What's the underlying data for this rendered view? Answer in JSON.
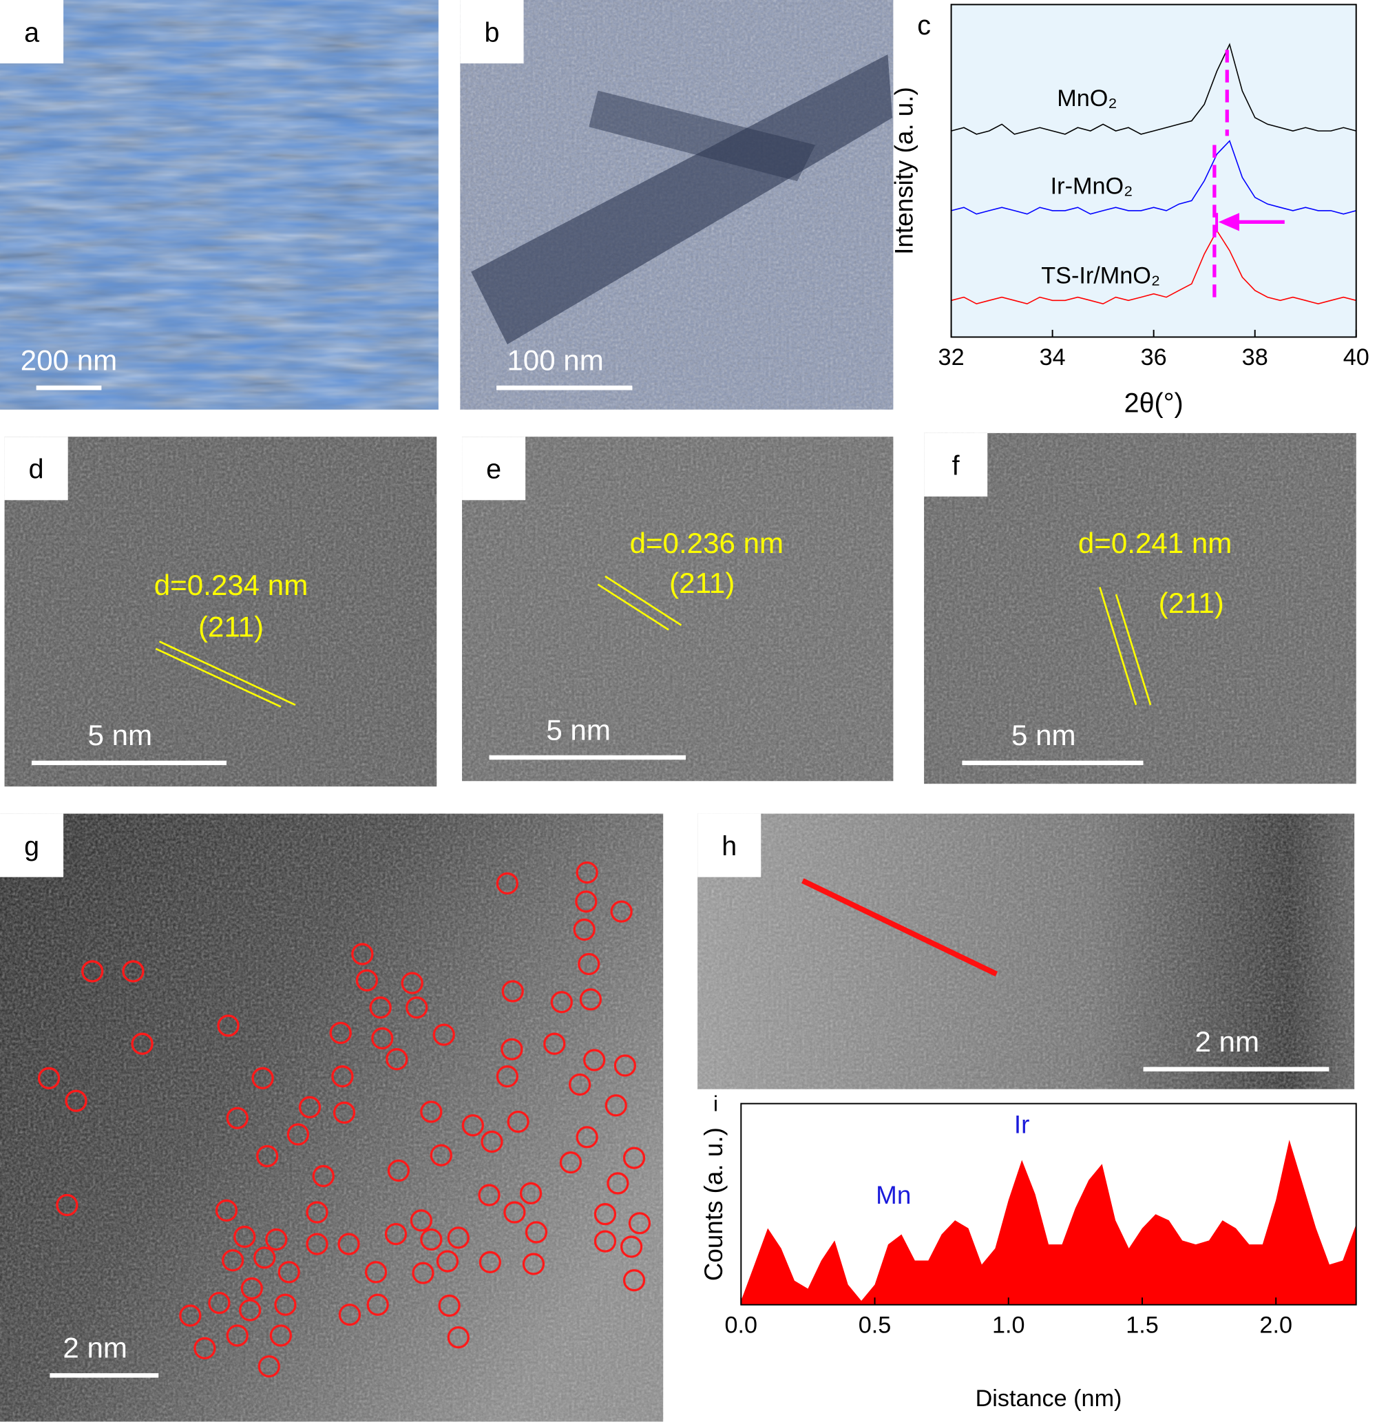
{
  "panels": {
    "a": {
      "label": "a",
      "scale_bar": "200 nm"
    },
    "b": {
      "label": "b",
      "scale_bar": "100 nm"
    },
    "d": {
      "label": "d",
      "spacing": "d=0.234 nm",
      "plane": "(211)",
      "scale_bar": "5 nm"
    },
    "e": {
      "label": "e",
      "spacing": "d=0.236 nm",
      "plane": "(211)",
      "scale_bar": "5 nm"
    },
    "f": {
      "label": "f",
      "spacing": "d=0.241 nm",
      "plane": "(211)",
      "scale_bar": "5 nm"
    },
    "g": {
      "label": "g",
      "scale_bar": "2 nm"
    },
    "h": {
      "label": "h",
      "scale_bar": "2 nm"
    }
  },
  "chart_data": [
    {
      "type": "line",
      "label": "c",
      "xlabel": "2θ(°)",
      "ylabel": "Intensity (a. u.)",
      "background": "#e8f4fc",
      "x": [
        32,
        32.25,
        32.5,
        32.75,
        33,
        33.25,
        33.5,
        33.75,
        34,
        34.25,
        34.5,
        34.75,
        35,
        35.25,
        35.5,
        35.75,
        36,
        36.25,
        36.5,
        36.75,
        37,
        37.25,
        37.5,
        37.75,
        38,
        38.25,
        38.5,
        38.75,
        39,
        39.25,
        39.5,
        39.75,
        40
      ],
      "series": [
        {
          "name": "MnO₂",
          "color": "#000000",
          "values": [
            62,
            63,
            61,
            62,
            64,
            61,
            62,
            63,
            62,
            61,
            63,
            62,
            64,
            62,
            63,
            61,
            62,
            63,
            64,
            65,
            70,
            80,
            88,
            74,
            66,
            64,
            63,
            62,
            63,
            62,
            62,
            63,
            62
          ]
        },
        {
          "name": "Ir-MnO₂",
          "color": "#0000ff",
          "values": [
            38,
            39,
            37,
            38,
            39,
            38,
            37,
            39,
            38,
            38,
            39,
            37,
            38,
            39,
            38,
            38,
            39,
            38,
            40,
            41,
            47,
            55,
            59,
            48,
            42,
            40,
            39,
            38,
            39,
            38,
            38,
            37,
            38
          ]
        },
        {
          "name": "TS-Ir/MnO₂",
          "color": "#ff0000",
          "values": [
            11,
            12,
            10,
            11,
            12,
            11,
            10,
            12,
            11,
            11,
            12,
            11,
            10,
            12,
            11,
            12,
            13,
            12,
            14,
            16,
            25,
            32,
            26,
            18,
            14,
            12,
            11,
            12,
            11,
            10,
            11,
            12,
            11
          ]
        }
      ],
      "xlim": [
        32,
        40
      ],
      "xticks": [
        32,
        34,
        36,
        38,
        40
      ],
      "ylim": [
        0,
        100
      ],
      "markers_x": [
        37.45,
        37.2
      ],
      "marker_color": "#ff00ff"
    },
    {
      "type": "area",
      "label": "i",
      "xlabel": "Distance (nm)",
      "ylabel": "Counts (a. u.)",
      "color": "#ff0000",
      "x": [
        0,
        0.05,
        0.1,
        0.15,
        0.2,
        0.25,
        0.3,
        0.35,
        0.4,
        0.45,
        0.5,
        0.55,
        0.6,
        0.65,
        0.7,
        0.75,
        0.8,
        0.85,
        0.9,
        0.95,
        1,
        1.05,
        1.1,
        1.15,
        1.2,
        1.25,
        1.3,
        1.35,
        1.4,
        1.45,
        1.5,
        1.55,
        1.6,
        1.65,
        1.7,
        1.75,
        1.8,
        1.85,
        1.9,
        1.95,
        2,
        2.05,
        2.1,
        2.15,
        2.2,
        2.25,
        2.3
      ],
      "values": [
        2,
        20,
        38,
        28,
        12,
        8,
        22,
        32,
        10,
        2,
        10,
        30,
        35,
        22,
        22,
        35,
        42,
        38,
        20,
        28,
        52,
        72,
        55,
        30,
        30,
        48,
        62,
        70,
        42,
        28,
        38,
        45,
        42,
        32,
        30,
        32,
        42,
        38,
        30,
        30,
        52,
        82,
        60,
        38,
        20,
        22,
        40
      ],
      "xlim": [
        0,
        2.3
      ],
      "xticks": [
        {
          "value": 0,
          "label": "0.0"
        },
        0.5,
        {
          "value": 1,
          "label": "1.0"
        },
        1.5,
        {
          "value": 2,
          "label": "2.0"
        }
      ],
      "ylim": [
        0,
        100
      ],
      "annotations": [
        {
          "text": "Mn",
          "x": 0.57,
          "y": 50,
          "color": "#1a1adb"
        },
        {
          "text": "Ir",
          "x": 1.05,
          "y": 85,
          "color": "#1a1adb"
        }
      ]
    }
  ]
}
